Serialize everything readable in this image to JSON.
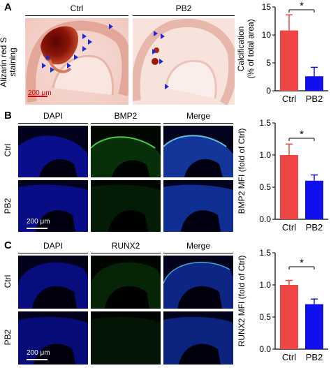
{
  "panels": [
    {
      "letter": "A",
      "cols": [
        "Ctrl",
        "PB2"
      ],
      "row_label": [
        "Alizarin red S",
        "staining"
      ],
      "scalebar": "200 μm"
    },
    {
      "letter": "B",
      "cols": [
        "DAPI",
        "BMP2",
        "Merge"
      ],
      "rows": [
        "Ctrl",
        "PB2"
      ],
      "scalebar": "200 μm"
    },
    {
      "letter": "C",
      "cols": [
        "DAPI",
        "RUNX2",
        "Merge"
      ],
      "rows": [
        "Ctrl",
        "PB2"
      ],
      "scalebar": "200 μm"
    }
  ],
  "chart_data": [
    {
      "type": "bar",
      "panel": "A",
      "categories": [
        "Ctrl",
        "PB2"
      ],
      "values": [
        10.8,
        2.6
      ],
      "errors": [
        2.8,
        1.6
      ],
      "ylabel": [
        "Calcification",
        "(% of total area)"
      ],
      "ylim": [
        0,
        15
      ],
      "yticks": [
        "0",
        "5",
        "10",
        "15"
      ],
      "significance": "*",
      "colors": [
        "#f04545",
        "#1010ee"
      ]
    },
    {
      "type": "bar",
      "panel": "B",
      "categories": [
        "Ctrl",
        "PB2"
      ],
      "values": [
        1.0,
        0.6
      ],
      "errors": [
        0.17,
        0.09
      ],
      "ylabel": [
        "BMP2 MFI (fold of Ctrl)"
      ],
      "ylim": [
        0,
        1.5
      ],
      "yticks": [
        "0.0",
        "0.5",
        "1.0",
        "1.5"
      ],
      "significance": "*",
      "colors": [
        "#f04545",
        "#1010ee"
      ]
    },
    {
      "type": "bar",
      "panel": "C",
      "categories": [
        "Ctrl",
        "PB2"
      ],
      "values": [
        1.0,
        0.7
      ],
      "errors": [
        0.07,
        0.08
      ],
      "ylabel": [
        "RUNX2 MFI (fold of Ctrl)"
      ],
      "ylim": [
        0,
        1.5
      ],
      "yticks": [
        "0.0",
        "0.5",
        "1.0",
        "1.5"
      ],
      "significance": "*",
      "colors": [
        "#f04545",
        "#1010ee"
      ]
    }
  ]
}
